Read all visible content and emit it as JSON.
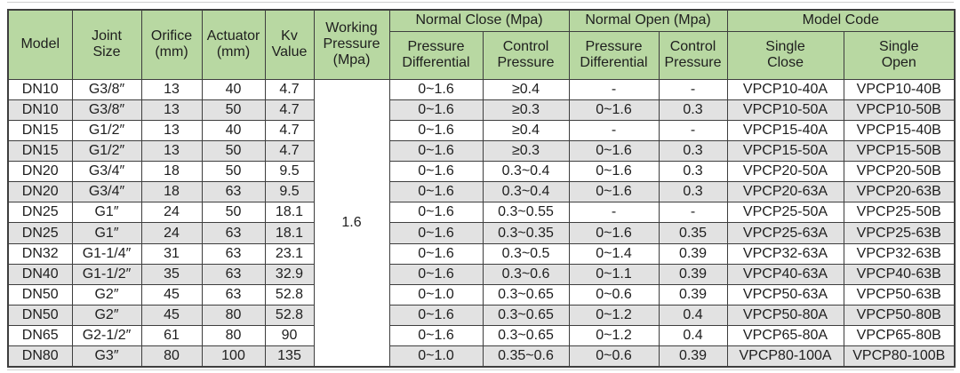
{
  "colors": {
    "header_green": "#b8d8a2",
    "row_alt_gray": "#e2e2e2",
    "border_dark": "#3e3e3e",
    "text": "#1e1e1e"
  },
  "table": {
    "header": {
      "model": "Model",
      "joint_size": "Joint\nSize",
      "orifice": "Orifice\n(mm)",
      "actuator": "Actuator\n(mm)",
      "kv_value": "Kv\nValue",
      "working_pressure": "Working\nPressure\n(Mpa)",
      "normal_close": "Normal Close (Mpa)",
      "normal_open": "Normal Open (Mpa)",
      "model_code": "Model Code",
      "pressure_differential": "Pressure\nDifferential",
      "control_pressure": "Control\nPressure",
      "single_close": "Single\nClose",
      "single_open": "Single\nOpen"
    },
    "working_pressure_value": "1.6",
    "rows": [
      {
        "model": "DN10",
        "joint_size": "G3/8″",
        "orifice": "13",
        "actuator": "40",
        "kv": "4.7",
        "nc_pd": "0~1.6",
        "nc_cp": "≥0.4",
        "no_pd": "-",
        "no_cp": "-",
        "single_close": "VPCP10-40A",
        "single_open": "VPCP10-40B"
      },
      {
        "model": "DN10",
        "joint_size": "G3/8″",
        "orifice": "13",
        "actuator": "50",
        "kv": "4.7",
        "nc_pd": "0~1.6",
        "nc_cp": "≥0.3",
        "no_pd": "0~1.6",
        "no_cp": "0.3",
        "single_close": "VPCP10-50A",
        "single_open": "VPCP10-50B"
      },
      {
        "model": "DN15",
        "joint_size": "G1/2″",
        "orifice": "13",
        "actuator": "40",
        "kv": "4.7",
        "nc_pd": "0~1.6",
        "nc_cp": "≥0.4",
        "no_pd": "-",
        "no_cp": "-",
        "single_close": "VPCP15-40A",
        "single_open": "VPCP15-40B"
      },
      {
        "model": "DN15",
        "joint_size": "G1/2″",
        "orifice": "13",
        "actuator": "50",
        "kv": "4.7",
        "nc_pd": "0~1.6",
        "nc_cp": "≥0.3",
        "no_pd": "0~1.6",
        "no_cp": "0.3",
        "single_close": "VPCP15-50A",
        "single_open": "VPCP15-50B"
      },
      {
        "model": "DN20",
        "joint_size": "G3/4″",
        "orifice": "18",
        "actuator": "50",
        "kv": "9.5",
        "nc_pd": "0~1.6",
        "nc_cp": "0.3~0.4",
        "no_pd": "0~1.6",
        "no_cp": "0.3",
        "single_close": "VPCP20-50A",
        "single_open": "VPCP20-50B"
      },
      {
        "model": "DN20",
        "joint_size": "G3/4″",
        "orifice": "18",
        "actuator": "63",
        "kv": "9.5",
        "nc_pd": "0~1.6",
        "nc_cp": "0.3~0.4",
        "no_pd": "0~1.6",
        "no_cp": "0.3",
        "single_close": "VPCP20-63A",
        "single_open": "VPCP20-63B"
      },
      {
        "model": "DN25",
        "joint_size": "G1″",
        "orifice": "24",
        "actuator": "50",
        "kv": "18.1",
        "nc_pd": "0~1.6",
        "nc_cp": "0.3~0.55",
        "no_pd": "-",
        "no_cp": "-",
        "single_close": "VPCP25-50A",
        "single_open": "VPCP25-50B"
      },
      {
        "model": "DN25",
        "joint_size": "G1″",
        "orifice": "24",
        "actuator": "63",
        "kv": "18.1",
        "nc_pd": "0~1.6",
        "nc_cp": "0.3~0.35",
        "no_pd": "0~1.6",
        "no_cp": "0.35",
        "single_close": "VPCP25-63A",
        "single_open": "VPCP25-63B"
      },
      {
        "model": "DN32",
        "joint_size": "G1-1/4″",
        "orifice": "31",
        "actuator": "63",
        "kv": "23.1",
        "nc_pd": "0~1.6",
        "nc_cp": "0.3~0.5",
        "no_pd": "0~1.4",
        "no_cp": "0.39",
        "single_close": "VPCP32-63A",
        "single_open": "VPCP32-63B"
      },
      {
        "model": "DN40",
        "joint_size": "G1-1/2″",
        "orifice": "35",
        "actuator": "63",
        "kv": "32.9",
        "nc_pd": "0~1.6",
        "nc_cp": "0.3~0.6",
        "no_pd": "0~1.1",
        "no_cp": "0.39",
        "single_close": "VPCP40-63A",
        "single_open": "VPCP40-63B"
      },
      {
        "model": "DN50",
        "joint_size": "G2″",
        "orifice": "45",
        "actuator": "63",
        "kv": "52.8",
        "nc_pd": "0~1.0",
        "nc_cp": "0.3~0.65",
        "no_pd": "0~0.6",
        "no_cp": "0.39",
        "single_close": "VPCP50-63A",
        "single_open": "VPCP50-63B"
      },
      {
        "model": "DN50",
        "joint_size": "G2″",
        "orifice": "45",
        "actuator": "80",
        "kv": "52.8",
        "nc_pd": "0~1.6",
        "nc_cp": "0.3~0.65",
        "no_pd": "0~1.2",
        "no_cp": "0.4",
        "single_close": "VPCP50-80A",
        "single_open": "VPCP50-80B"
      },
      {
        "model": "DN65",
        "joint_size": "G2-1/2″",
        "orifice": "61",
        "actuator": "80",
        "kv": "90",
        "nc_pd": "0~1.6",
        "nc_cp": "0.3~0.65",
        "no_pd": "0~1.2",
        "no_cp": "0.4",
        "single_close": "VPCP65-80A",
        "single_open": "VPCP65-80B"
      },
      {
        "model": "DN80",
        "joint_size": "G3″",
        "orifice": "80",
        "actuator": "100",
        "kv": "135",
        "nc_pd": "0~1.0",
        "nc_cp": "0.35~0.6",
        "no_pd": "0~0.6",
        "no_cp": "0.39",
        "single_close": "VPCP80-100A",
        "single_open": "VPCP80-100B"
      }
    ]
  }
}
